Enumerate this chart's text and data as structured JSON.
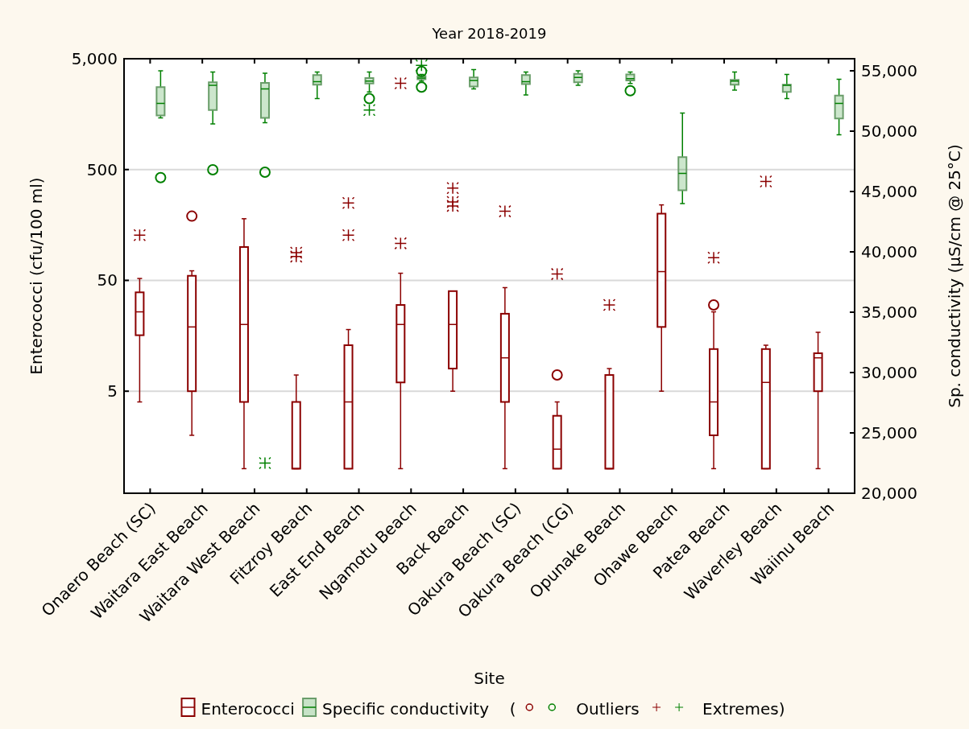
{
  "chart_data": {
    "type": "box",
    "title": "Year 2018-2019",
    "xlabel": "Site",
    "ylabel": "Enterococci (cfu/100 ml)",
    "y2label": "Sp. conductivity (µS/cm @ 25°C)",
    "categories": [
      "Onaero Beach (SC)",
      "Waitara East Beach",
      "Waitara West Beach",
      "Fitzroy Beach",
      "East End Beach",
      "Ngamotu Beach",
      "Back Beach",
      "Oakura Beach (SC)",
      "Oakura Beach (CG)",
      "Opunake Beach",
      "Ohawe Beach",
      "Patea Beach",
      "Waverley Beach",
      "Waiinu Beach"
    ],
    "log": "y",
    "ylim": [
      0.6,
      5000
    ],
    "yticks": [
      5,
      50,
      500,
      {
        "value": 5000,
        "label": "5,000"
      }
    ],
    "y2lim": [
      20000,
      56000
    ],
    "y2ticks": [
      {
        "value": 20000,
        "label": "20,000"
      },
      {
        "value": 25000,
        "label": "25,000"
      },
      {
        "value": 30000,
        "label": "30,000"
      },
      {
        "value": 35000,
        "label": "35,000"
      },
      {
        "value": 40000,
        "label": "40,000"
      },
      {
        "value": 45000,
        "label": "45,000"
      },
      {
        "value": 50000,
        "label": "50,000"
      },
      {
        "value": 55000,
        "label": "55,000"
      }
    ],
    "grid": "y",
    "legend": "bottom",
    "annotations": [
      "(",
      "Outliers",
      "Extremes)"
    ],
    "series": [
      {
        "name": "Enterococci",
        "color": "#8b0000",
        "boxes": [
          {
            "low": 4,
            "q1": 16,
            "median": 26,
            "q3": 39,
            "high": 52,
            "outliers": [
              128
            ]
          },
          {
            "low": 2,
            "q1": 5,
            "median": 19,
            "q3": 55,
            "high": 61,
            "outliers": [
              190
            ]
          },
          {
            "low": 1,
            "q1": 4,
            "median": 20,
            "q3": 100,
            "high": 180
          },
          {
            "low": 1,
            "q1": 1,
            "median": 1,
            "q3": 4,
            "high": 7,
            "outliers": [
              82,
              89
            ]
          },
          {
            "low": 1,
            "q1": 1,
            "median": 4,
            "q3": 13,
            "high": 18,
            "outliers": [
              128,
              250
            ]
          },
          {
            "low": 1,
            "q1": 6,
            "median": 20,
            "q3": 30,
            "high": 58,
            "outliers": [
              108,
              3000
            ]
          },
          {
            "low": 5,
            "q1": 8,
            "median": 20,
            "q3": 40,
            "high": 40,
            "outliers": [
              235,
              255,
              340
            ]
          },
          {
            "low": 1,
            "q1": 4,
            "median": 10,
            "q3": 25,
            "high": 43,
            "outliers": [
              210
            ]
          },
          {
            "low": 1,
            "q1": 1,
            "median": 1.5,
            "q3": 3,
            "high": 4,
            "outliers": [
              7,
              57
            ]
          },
          {
            "low": 1,
            "q1": 1,
            "median": 1,
            "q3": 7,
            "high": 8,
            "outliers": [
              30
            ]
          },
          {
            "low": 5,
            "q1": 19,
            "median": 60,
            "q3": 200,
            "high": 240
          },
          {
            "low": 1,
            "q1": 2,
            "median": 4,
            "q3": 12,
            "high": 26,
            "outliers": [
              30,
              80
            ]
          },
          {
            "low": 1,
            "q1": 1,
            "median": 6,
            "q3": 12,
            "high": 13,
            "outliers": [
              390
            ]
          },
          {
            "low": 1,
            "q1": 5,
            "median": 10,
            "q3": 11,
            "high": 17
          }
        ]
      },
      {
        "name": "Specific conductivity",
        "color": "#008000",
        "axis": "y2",
        "boxes": [
          {
            "low": 51100,
            "q1": 51300,
            "median": 52300,
            "q3": 53650,
            "high": 55000,
            "outliers": [
              46150
            ]
          },
          {
            "low": 50600,
            "q1": 51750,
            "median": 53800,
            "q3": 54050,
            "high": 54900,
            "outliers": [
              46800
            ]
          },
          {
            "low": 50700,
            "q1": 51100,
            "median": 53500,
            "q3": 54000,
            "high": 54800,
            "outliers": [
              46600,
              22500
            ]
          },
          {
            "low": 52700,
            "q1": 53850,
            "median": 54100,
            "q3": 54650,
            "high": 54900
          },
          {
            "low": 53250,
            "q1": 53950,
            "median": 54150,
            "q3": 54400,
            "high": 54900,
            "outliers": [
              52700,
              51750
            ]
          },
          {
            "low": 54150,
            "q1": 54300,
            "median": 54400,
            "q3": 54550,
            "high": 54700,
            "outliers": [
              55450,
              54950,
              53650
            ]
          },
          {
            "low": 53500,
            "q1": 53700,
            "median": 54200,
            "q3": 54450,
            "high": 55100
          },
          {
            "low": 53000,
            "q1": 53900,
            "median": 54100,
            "q3": 54650,
            "high": 54900
          },
          {
            "low": 53800,
            "q1": 54050,
            "median": 54450,
            "q3": 54750,
            "high": 55000
          },
          {
            "low": 53950,
            "q1": 54200,
            "median": 54350,
            "q3": 54700,
            "high": 54900,
            "outliers": [
              53350
            ]
          },
          {
            "low": 44000,
            "q1": 45100,
            "median": 46500,
            "q3": 47850,
            "high": 51500
          },
          {
            "low": 53400,
            "q1": 53850,
            "median": 54150,
            "q3": 54250,
            "high": 54900
          },
          {
            "low": 52700,
            "q1": 53250,
            "median": 53800,
            "q3": 53850,
            "high": 54700
          },
          {
            "low": 49700,
            "q1": 51050,
            "median": 52300,
            "q3": 52950,
            "high": 54300
          }
        ]
      }
    ]
  }
}
